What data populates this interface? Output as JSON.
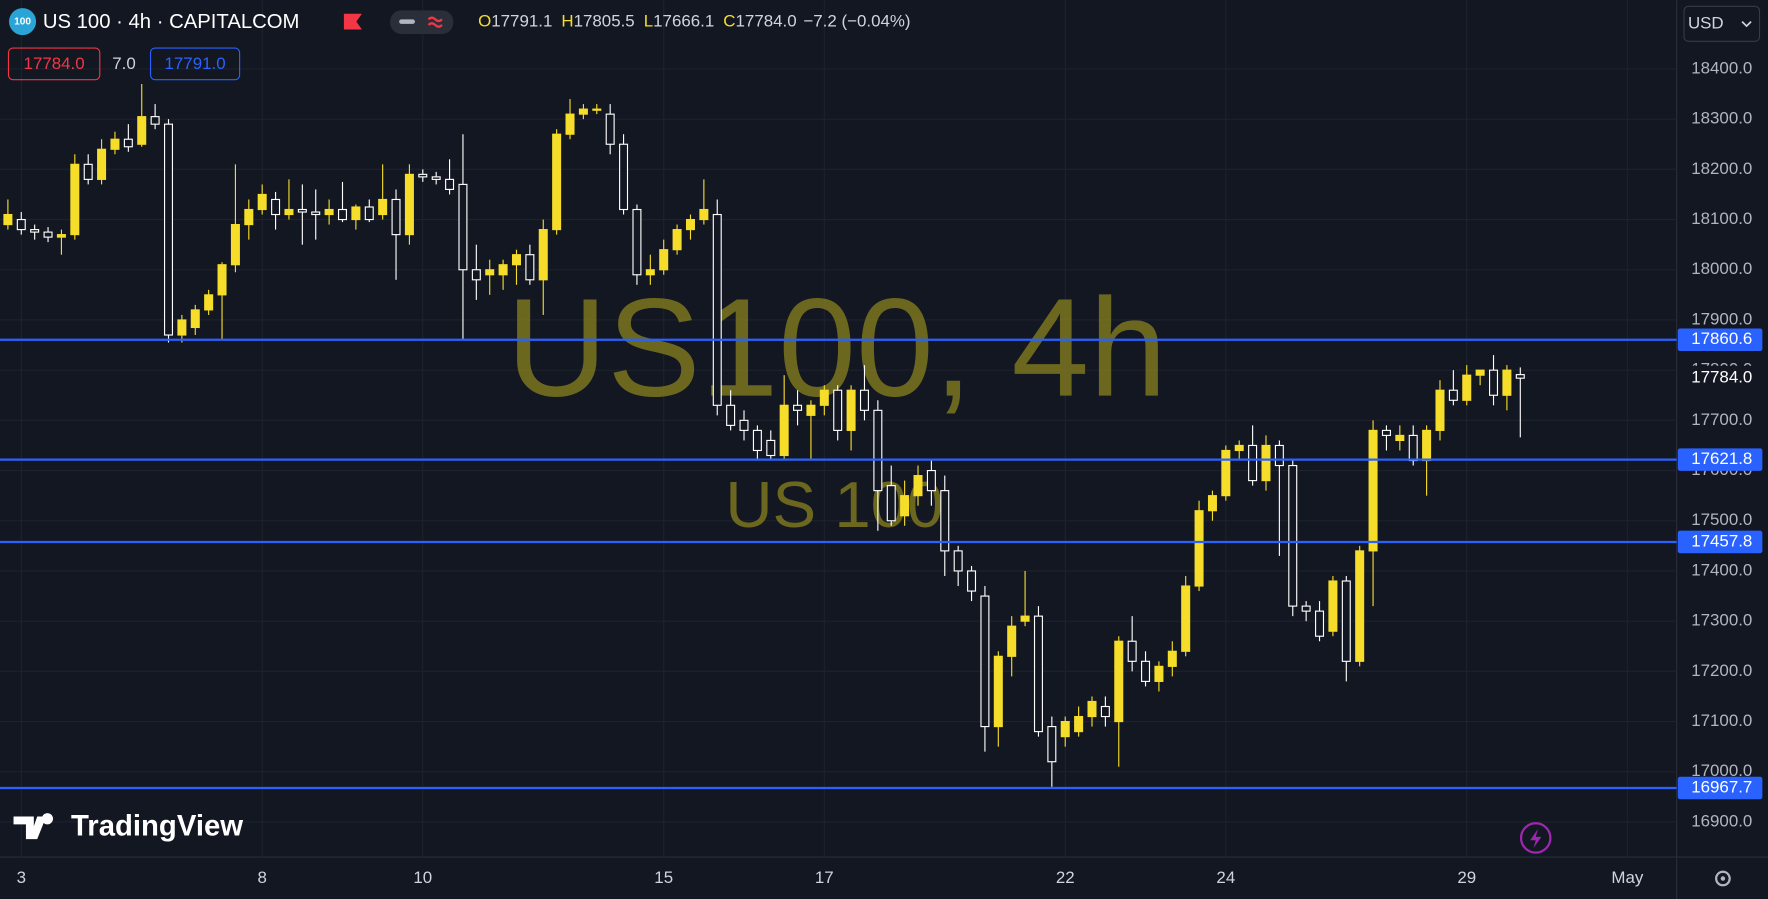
{
  "header": {
    "logo": "100",
    "symbol": "US 100 · 4h · CAPITALCOM",
    "ohlc": [
      {
        "label": "O",
        "value": "17791.1"
      },
      {
        "label": "H",
        "value": "17805.5"
      },
      {
        "label": "L",
        "value": "17666.1"
      },
      {
        "label": "C",
        "value": "17784.0"
      }
    ],
    "change": "−7.2 (−0.04%)",
    "sell": "17784.0",
    "spread": "7.0",
    "buy": "17791.0",
    "currency": "USD"
  },
  "watermark": {
    "title": "US100, 4h",
    "subtitle": "US 100"
  },
  "branding": "TradingView",
  "chart_data": {
    "type": "candlestick",
    "colors": {
      "up": "#f5dd2a",
      "down": "#ffffff",
      "hline": "#2962ff"
    },
    "grid": true,
    "categories": [
      null,
      "3",
      null,
      null,
      null,
      null,
      null,
      null,
      null,
      null,
      null,
      null,
      null,
      null,
      null,
      null,
      null,
      null,
      null,
      "8",
      null,
      null,
      null,
      null,
      null,
      null,
      null,
      null,
      null,
      null,
      null,
      "10",
      null,
      null,
      null,
      null,
      null,
      null,
      null,
      null,
      null,
      null,
      null,
      null,
      null,
      null,
      null,
      null,
      null,
      "15",
      null,
      null,
      null,
      null,
      null,
      null,
      null,
      null,
      null,
      null,
      null,
      "17",
      null,
      null,
      null,
      null,
      null,
      null,
      null,
      null,
      null,
      null,
      null,
      null,
      null,
      null,
      null,
      null,
      null,
      "22",
      null,
      null,
      null,
      null,
      null,
      null,
      null,
      null,
      null,
      null,
      null,
      "24",
      null,
      null,
      null,
      null,
      null,
      null,
      null,
      null,
      null,
      null,
      null,
      null,
      null,
      null,
      null,
      null,
      null,
      "29",
      null,
      null,
      null,
      null,
      null,
      null,
      null,
      null,
      null,
      null,
      null,
      "May"
    ],
    "open": [
      18090,
      18100,
      18080,
      18075,
      18065,
      18070,
      18210,
      18180,
      18240,
      18260,
      18250,
      18305,
      18290,
      17870,
      17885,
      17920,
      17950,
      18010,
      18090,
      18120,
      18140,
      18110,
      18120,
      18115,
      18110,
      18120,
      18100,
      18125,
      18110,
      18140,
      18070,
      18190,
      18185,
      18180,
      18170,
      18000,
      17990,
      17990,
      18010,
      18030,
      17980,
      18080,
      18270,
      18310,
      18320,
      18310,
      18250,
      18120,
      17990,
      18000,
      18040,
      18080,
      18100,
      18110,
      17730,
      17700,
      17680,
      17660,
      17630,
      17730,
      17710,
      17730,
      17760,
      17680,
      17760,
      17720,
      17570,
      17510,
      17550,
      17600,
      17560,
      17440,
      17400,
      17350,
      17090,
      17230,
      17300,
      17310,
      17090,
      17070,
      17080,
      17110,
      17130,
      17100,
      17260,
      17220,
      17180,
      17210,
      17240,
      17370,
      17520,
      17550,
      17640,
      17650,
      17580,
      17650,
      17610,
      17330,
      17320,
      17280,
      17380,
      17220,
      17440,
      17680,
      17660,
      17670,
      17620,
      17680,
      17760,
      17740,
      17790,
      17800,
      17750,
      17791.1,
      null,
      null,
      null,
      null,
      null,
      null,
      null,
      null
    ],
    "high": [
      18140,
      18115,
      18090,
      18085,
      18080,
      18230,
      18230,
      18260,
      18275,
      18290,
      18370,
      18330,
      18300,
      17910,
      17930,
      17960,
      18015,
      18210,
      18140,
      18170,
      18155,
      18180,
      18170,
      18160,
      18140,
      18175,
      18130,
      18140,
      18210,
      18160,
      18210,
      18200,
      18195,
      18220,
      18270,
      18050,
      18020,
      18020,
      18040,
      18050,
      18100,
      18280,
      18340,
      18330,
      18330,
      18330,
      18270,
      18130,
      18030,
      18060,
      18090,
      18110,
      18180,
      18140,
      17760,
      17720,
      17690,
      17680,
      17790,
      17760,
      17740,
      17770,
      17770,
      17770,
      17810,
      17740,
      17610,
      17580,
      17610,
      17620,
      17590,
      17450,
      17410,
      17370,
      17240,
      17310,
      17400,
      17330,
      17110,
      17110,
      17130,
      17150,
      17150,
      17270,
      17310,
      17240,
      17220,
      17260,
      17390,
      17540,
      17560,
      17650,
      17660,
      17690,
      17670,
      17660,
      17620,
      17340,
      17340,
      17390,
      17390,
      17450,
      17700,
      17690,
      17690,
      17690,
      17690,
      17780,
      17800,
      17810,
      17800,
      17830,
      17810,
      17805.5,
      null,
      null,
      null,
      null,
      null,
      null,
      null,
      null
    ],
    "low": [
      18080,
      18070,
      18060,
      18055,
      18030,
      18060,
      18170,
      18170,
      18230,
      18235,
      18245,
      18280,
      17855,
      17855,
      17870,
      17910,
      17860,
      17995,
      18060,
      18110,
      18080,
      18100,
      18050,
      18060,
      18090,
      18095,
      18080,
      18095,
      18100,
      17980,
      18050,
      18175,
      18170,
      18150,
      17860,
      17940,
      17950,
      17960,
      17970,
      17970,
      17910,
      18070,
      18260,
      18300,
      18310,
      18230,
      18110,
      17970,
      17970,
      17990,
      18030,
      18060,
      18090,
      17710,
      17680,
      17660,
      17620,
      17620,
      17620,
      17690,
      17620,
      17710,
      17660,
      17640,
      17700,
      17480,
      17490,
      17490,
      17530,
      17530,
      17390,
      17370,
      17340,
      17040,
      17050,
      17190,
      17290,
      17070,
      16970,
      17050,
      17070,
      17090,
      17090,
      17010,
      17200,
      17170,
      17160,
      17190,
      17230,
      17360,
      17500,
      17540,
      17620,
      17570,
      17560,
      17430,
      17310,
      17300,
      17260,
      17270,
      17180,
      17210,
      17330,
      17640,
      17640,
      17610,
      17550,
      17660,
      17730,
      17730,
      17770,
      17730,
      17720,
      17666.1,
      null,
      null,
      null,
      null,
      null,
      null,
      null,
      null
    ],
    "close": [
      18110,
      18080,
      18075,
      18065,
      18070,
      18210,
      18180,
      18240,
      18260,
      18245,
      18305,
      18290,
      17870,
      17900,
      17920,
      17950,
      18010,
      18090,
      18120,
      18150,
      18110,
      18120,
      18115,
      18110,
      18120,
      18100,
      18125,
      18100,
      18140,
      18070,
      18190,
      18185,
      18180,
      18160,
      18000,
      17980,
      18000,
      18010,
      18030,
      17980,
      18080,
      18270,
      18310,
      18320,
      18320,
      18250,
      18120,
      17990,
      18000,
      18040,
      18080,
      18100,
      18120,
      17730,
      17690,
      17680,
      17640,
      17630,
      17730,
      17720,
      17730,
      17760,
      17680,
      17760,
      17720,
      17560,
      17500,
      17550,
      17590,
      17560,
      17440,
      17400,
      17360,
      17090,
      17230,
      17290,
      17310,
      17080,
      17020,
      17100,
      17110,
      17140,
      17110,
      17260,
      17220,
      17180,
      17210,
      17240,
      17370,
      17520,
      17550,
      17640,
      17650,
      17580,
      17650,
      17610,
      17330,
      17320,
      17270,
      17380,
      17220,
      17440,
      17680,
      17670,
      17670,
      17620,
      17680,
      17760,
      17740,
      17790,
      17800,
      17750,
      17800,
      17784.0,
      null,
      null,
      null,
      null,
      null,
      null,
      null,
      null
    ],
    "ylim": [
      16830,
      18537
    ],
    "yticks": [
      {
        "value": 16900,
        "label": "16900.0"
      },
      {
        "value": 17000,
        "label": "17000.0"
      },
      {
        "value": 17100,
        "label": "17100.0"
      },
      {
        "value": 17200,
        "label": "17200.0"
      },
      {
        "value": 17300,
        "label": "17300.0"
      },
      {
        "value": 17400,
        "label": "17400.0"
      },
      {
        "value": 17500,
        "label": "17500.0"
      },
      {
        "value": 17600,
        "label": "17600.0"
      },
      {
        "value": 17700,
        "label": "17700.0"
      },
      {
        "value": 17800,
        "label": "17800.0"
      },
      {
        "value": 17900,
        "label": "17900.0"
      },
      {
        "value": 18000,
        "label": "18000.0"
      },
      {
        "value": 18100,
        "label": "18100.0"
      },
      {
        "value": 18200,
        "label": "18200.0"
      },
      {
        "value": 18300,
        "label": "18300.0"
      },
      {
        "value": 18400,
        "label": "18400.0"
      }
    ],
    "hlines": [
      17860.6,
      17621.8,
      17457.8,
      16967.7
    ],
    "price_line": {
      "value": 17784.0,
      "label": "17784.0"
    }
  }
}
